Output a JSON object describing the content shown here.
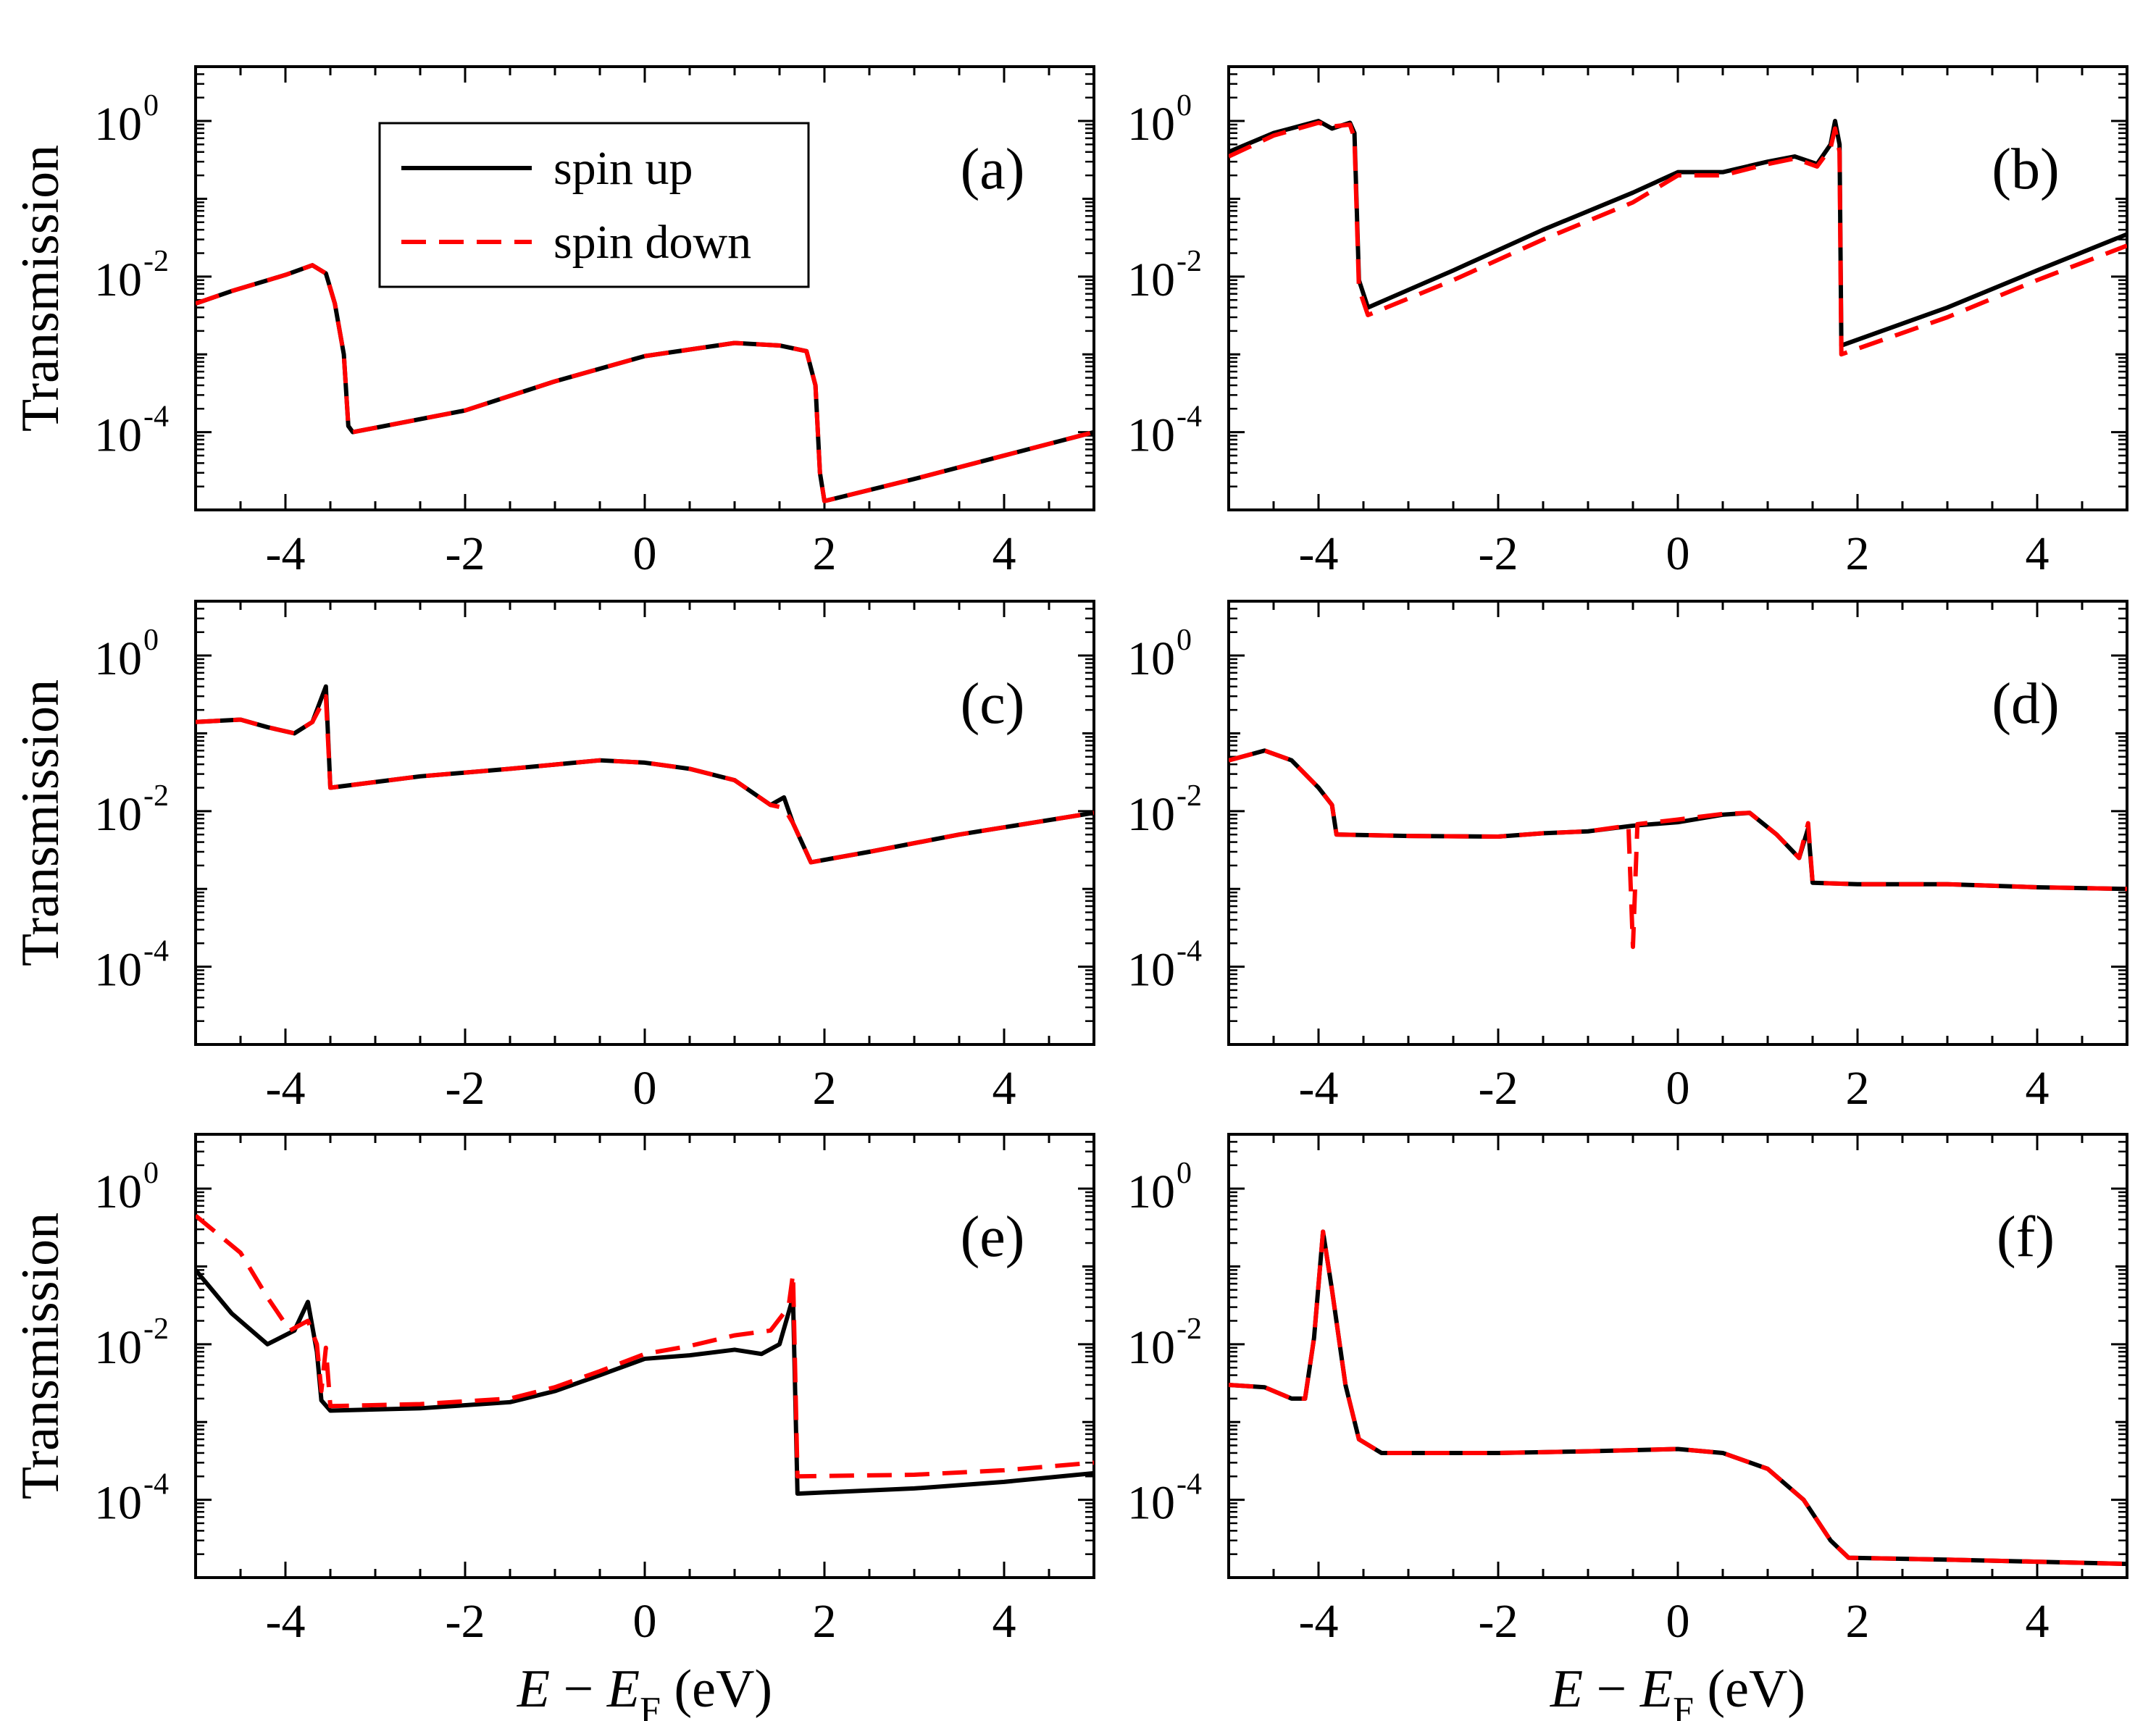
{
  "chart_data": {
    "type": "line",
    "layout": "3x2 grid",
    "xlabel": {
      "italic_a": "E",
      "minus": " − ",
      "italic_b": "E",
      "sub": "F",
      "unit": " (eV)"
    },
    "ylabel": "Transmission",
    "xlim": [
      -5,
      5
    ],
    "ylim": [
      1e-05,
      5
    ],
    "yscale": "log",
    "xticks": [
      -4,
      -2,
      0,
      2,
      4
    ],
    "xtick_labels": [
      "-4",
      "-2",
      "0",
      "2",
      "4"
    ],
    "yticks": [
      {
        "value": 1,
        "base": "10",
        "exp": "0"
      },
      {
        "value": 0.01,
        "base": "10",
        "exp": "-2"
      },
      {
        "value": 0.0001,
        "base": "10",
        "exp": "-4"
      }
    ],
    "legend": {
      "location": "top-left, panel (a)",
      "entries": [
        {
          "label": "spin up",
          "color": "#000000",
          "style": "solid"
        },
        {
          "label": "spin down",
          "color": "#ff0000",
          "style": "dashed"
        }
      ]
    },
    "panels": [
      {
        "label": "(a)",
        "spin_up": [
          [
            -5,
            0.0045
          ],
          [
            -4.6,
            0.0065
          ],
          [
            -4,
            0.0105
          ],
          [
            -3.7,
            0.014
          ],
          [
            -3.55,
            0.011
          ],
          [
            -3.45,
            0.0045
          ],
          [
            -3.35,
            0.001
          ],
          [
            -3.3,
            0.00012
          ],
          [
            -3.25,
            0.0001
          ],
          [
            -2,
            0.00019
          ],
          [
            -1,
            0.00045
          ],
          [
            0,
            0.00095
          ],
          [
            1,
            0.0014
          ],
          [
            1.5,
            0.0013
          ],
          [
            1.8,
            0.0011
          ],
          [
            1.9,
            0.0004
          ],
          [
            1.95,
            3e-05
          ],
          [
            2,
            1.3e-05
          ],
          [
            3,
            2.5e-05
          ],
          [
            4,
            5e-05
          ],
          [
            5,
            0.0001
          ]
        ],
        "spin_down": [
          [
            -5,
            0.0045
          ],
          [
            -4.6,
            0.0065
          ],
          [
            -4,
            0.0105
          ],
          [
            -3.7,
            0.014
          ],
          [
            -3.55,
            0.011
          ],
          [
            -3.45,
            0.0045
          ],
          [
            -3.35,
            0.001
          ],
          [
            -3.3,
            0.00012
          ],
          [
            -3.25,
            0.0001
          ],
          [
            -2,
            0.00019
          ],
          [
            -1,
            0.00045
          ],
          [
            0,
            0.00095
          ],
          [
            1,
            0.0014
          ],
          [
            1.5,
            0.0013
          ],
          [
            1.8,
            0.0011
          ],
          [
            1.9,
            0.0004
          ],
          [
            1.95,
            3e-05
          ],
          [
            2,
            1.3e-05
          ],
          [
            3,
            2.5e-05
          ],
          [
            4,
            5e-05
          ],
          [
            5,
            0.0001
          ]
        ]
      },
      {
        "label": "(b)",
        "spin_up": [
          [
            -5,
            0.4
          ],
          [
            -4.5,
            0.7
          ],
          [
            -4,
            1.0
          ],
          [
            -3.85,
            0.8
          ],
          [
            -3.65,
            0.95
          ],
          [
            -3.6,
            0.7
          ],
          [
            -3.55,
            0.009
          ],
          [
            -3.45,
            0.004
          ],
          [
            -2.5,
            0.012
          ],
          [
            -1.5,
            0.04
          ],
          [
            -0.5,
            0.12
          ],
          [
            0,
            0.22
          ],
          [
            0.5,
            0.22
          ],
          [
            1,
            0.3
          ],
          [
            1.3,
            0.35
          ],
          [
            1.55,
            0.28
          ],
          [
            1.7,
            0.5
          ],
          [
            1.75,
            1.0
          ],
          [
            1.8,
            0.5
          ],
          [
            1.82,
            0.0013
          ],
          [
            3,
            0.004
          ],
          [
            4,
            0.012
          ],
          [
            5,
            0.035
          ]
        ],
        "spin_down": [
          [
            -5,
            0.35
          ],
          [
            -4.5,
            0.65
          ],
          [
            -4,
            0.95
          ],
          [
            -3.85,
            0.85
          ],
          [
            -3.65,
            0.9
          ],
          [
            -3.6,
            0.6
          ],
          [
            -3.55,
            0.007
          ],
          [
            -3.45,
            0.0032
          ],
          [
            -2.5,
            0.009
          ],
          [
            -1.5,
            0.03
          ],
          [
            -0.5,
            0.09
          ],
          [
            0,
            0.2
          ],
          [
            0.5,
            0.2
          ],
          [
            1,
            0.28
          ],
          [
            1.3,
            0.33
          ],
          [
            1.55,
            0.26
          ],
          [
            1.7,
            0.45
          ],
          [
            1.75,
            0.8
          ],
          [
            1.8,
            0.4
          ],
          [
            1.82,
            0.001
          ],
          [
            3,
            0.003
          ],
          [
            4,
            0.009
          ],
          [
            5,
            0.025
          ]
        ]
      },
      {
        "label": "(c)",
        "spin_up": [
          [
            -5,
            0.14
          ],
          [
            -4.5,
            0.15
          ],
          [
            -4.2,
            0.12
          ],
          [
            -3.9,
            0.1
          ],
          [
            -3.7,
            0.14
          ],
          [
            -3.55,
            0.4
          ],
          [
            -3.5,
            0.02
          ],
          [
            -2.5,
            0.028
          ],
          [
            -1.5,
            0.035
          ],
          [
            -0.5,
            0.045
          ],
          [
            0,
            0.042
          ],
          [
            0.5,
            0.035
          ],
          [
            1,
            0.025
          ],
          [
            1.4,
            0.012
          ],
          [
            1.55,
            0.015
          ],
          [
            1.65,
            0.007
          ],
          [
            1.85,
            0.0022
          ],
          [
            2.5,
            0.003
          ],
          [
            3.5,
            0.005
          ],
          [
            5,
            0.0095
          ]
        ],
        "spin_down": [
          [
            -5,
            0.14
          ],
          [
            -4.5,
            0.15
          ],
          [
            -4.2,
            0.12
          ],
          [
            -3.9,
            0.1
          ],
          [
            -3.7,
            0.14
          ],
          [
            -3.55,
            0.3
          ],
          [
            -3.5,
            0.02
          ],
          [
            -2.5,
            0.028
          ],
          [
            -1.5,
            0.035
          ],
          [
            -0.5,
            0.045
          ],
          [
            0,
            0.042
          ],
          [
            0.5,
            0.035
          ],
          [
            1,
            0.025
          ],
          [
            1.4,
            0.012
          ],
          [
            1.55,
            0.011
          ],
          [
            1.65,
            0.007
          ],
          [
            1.85,
            0.0022
          ],
          [
            2.5,
            0.003
          ],
          [
            3.5,
            0.005
          ],
          [
            5,
            0.0095
          ]
        ]
      },
      {
        "label": "(d)",
        "spin_up": [
          [
            -5,
            0.045
          ],
          [
            -4.6,
            0.06
          ],
          [
            -4.3,
            0.045
          ],
          [
            -4,
            0.02
          ],
          [
            -3.85,
            0.012
          ],
          [
            -3.8,
            0.005
          ],
          [
            -3,
            0.0048
          ],
          [
            -2,
            0.0047
          ],
          [
            -1.5,
            0.0052
          ],
          [
            -1,
            0.0055
          ],
          [
            -0.5,
            0.0065
          ],
          [
            0,
            0.0072
          ],
          [
            0.5,
            0.009
          ],
          [
            0.8,
            0.0095
          ],
          [
            1.1,
            0.005
          ],
          [
            1.35,
            0.0025
          ],
          [
            1.45,
            0.006
          ],
          [
            1.5,
            0.0012
          ],
          [
            2,
            0.00115
          ],
          [
            3,
            0.00115
          ],
          [
            4,
            0.00105
          ],
          [
            5,
            0.001
          ]
        ],
        "spin_down": [
          [
            -5,
            0.045
          ],
          [
            -4.6,
            0.06
          ],
          [
            -4.3,
            0.045
          ],
          [
            -4,
            0.02
          ],
          [
            -3.85,
            0.012
          ],
          [
            -3.8,
            0.005
          ],
          [
            -3,
            0.0048
          ],
          [
            -2,
            0.0047
          ],
          [
            -1.5,
            0.0052
          ],
          [
            -1,
            0.0055
          ],
          [
            -0.55,
            0.0065
          ],
          [
            -0.5,
            0.00018
          ],
          [
            -0.45,
            0.0068
          ],
          [
            0,
            0.0078
          ],
          [
            0.5,
            0.0092
          ],
          [
            0.8,
            0.0095
          ],
          [
            1.1,
            0.005
          ],
          [
            1.35,
            0.0025
          ],
          [
            1.45,
            0.007
          ],
          [
            1.5,
            0.0012
          ],
          [
            2,
            0.00115
          ],
          [
            3,
            0.00115
          ],
          [
            4,
            0.00105
          ],
          [
            5,
            0.001
          ]
        ]
      },
      {
        "label": "(e)",
        "spin_up": [
          [
            -5,
            0.09
          ],
          [
            -4.6,
            0.025
          ],
          [
            -4.2,
            0.01
          ],
          [
            -3.9,
            0.015
          ],
          [
            -3.75,
            0.035
          ],
          [
            -3.65,
            0.008
          ],
          [
            -3.6,
            0.0019
          ],
          [
            -3.5,
            0.0014
          ],
          [
            -2.5,
            0.0015
          ],
          [
            -1.5,
            0.0018
          ],
          [
            -1,
            0.0025
          ],
          [
            -0.5,
            0.004
          ],
          [
            0,
            0.0065
          ],
          [
            0.5,
            0.0072
          ],
          [
            1,
            0.0085
          ],
          [
            1.3,
            0.0075
          ],
          [
            1.5,
            0.01
          ],
          [
            1.65,
            0.04
          ],
          [
            1.7,
            0.00012
          ],
          [
            3,
            0.00014
          ],
          [
            4,
            0.00017
          ],
          [
            5,
            0.00022
          ]
        ],
        "spin_down": [
          [
            -5,
            0.45
          ],
          [
            -4.5,
            0.15
          ],
          [
            -4.2,
            0.04
          ],
          [
            -3.95,
            0.015
          ],
          [
            -3.75,
            0.02
          ],
          [
            -3.65,
            0.01
          ],
          [
            -3.6,
            0.0025
          ],
          [
            -3.55,
            0.009
          ],
          [
            -3.5,
            0.0016
          ],
          [
            -2.5,
            0.0017
          ],
          [
            -1.5,
            0.002
          ],
          [
            -1,
            0.0028
          ],
          [
            -0.5,
            0.0045
          ],
          [
            0,
            0.0075
          ],
          [
            0.5,
            0.0095
          ],
          [
            1,
            0.013
          ],
          [
            1.4,
            0.015
          ],
          [
            1.6,
            0.03
          ],
          [
            1.65,
            0.08
          ],
          [
            1.7,
            0.0002
          ],
          [
            3,
            0.00021
          ],
          [
            4,
            0.00024
          ],
          [
            5,
            0.0003
          ]
        ]
      },
      {
        "label": "(f)",
        "spin_up": [
          [
            -5,
            0.003
          ],
          [
            -4.6,
            0.0028
          ],
          [
            -4.3,
            0.002
          ],
          [
            -4.15,
            0.002
          ],
          [
            -4.05,
            0.012
          ],
          [
            -3.95,
            0.28
          ],
          [
            -3.85,
            0.05
          ],
          [
            -3.7,
            0.003
          ],
          [
            -3.55,
            0.0006
          ],
          [
            -3.3,
            0.0004
          ],
          [
            -2,
            0.0004
          ],
          [
            -1,
            0.00042
          ],
          [
            0,
            0.00045
          ],
          [
            0.5,
            0.0004
          ],
          [
            1,
            0.00025
          ],
          [
            1.4,
            0.0001
          ],
          [
            1.7,
            3e-05
          ],
          [
            1.9,
            1.8e-05
          ],
          [
            3,
            1.7e-05
          ],
          [
            4,
            1.6e-05
          ],
          [
            5,
            1.5e-05
          ]
        ],
        "spin_down": [
          [
            -5,
            0.003
          ],
          [
            -4.6,
            0.0028
          ],
          [
            -4.3,
            0.002
          ],
          [
            -4.15,
            0.002
          ],
          [
            -4.05,
            0.012
          ],
          [
            -3.95,
            0.28
          ],
          [
            -3.85,
            0.05
          ],
          [
            -3.7,
            0.003
          ],
          [
            -3.55,
            0.0006
          ],
          [
            -3.3,
            0.0004
          ],
          [
            -2,
            0.0004
          ],
          [
            -1,
            0.00042
          ],
          [
            0,
            0.00045
          ],
          [
            0.5,
            0.0004
          ],
          [
            1,
            0.00025
          ],
          [
            1.4,
            0.0001
          ],
          [
            1.7,
            3e-05
          ],
          [
            1.9,
            1.8e-05
          ],
          [
            3,
            1.7e-05
          ],
          [
            4,
            1.6e-05
          ],
          [
            5,
            1.5e-05
          ]
        ]
      }
    ]
  }
}
